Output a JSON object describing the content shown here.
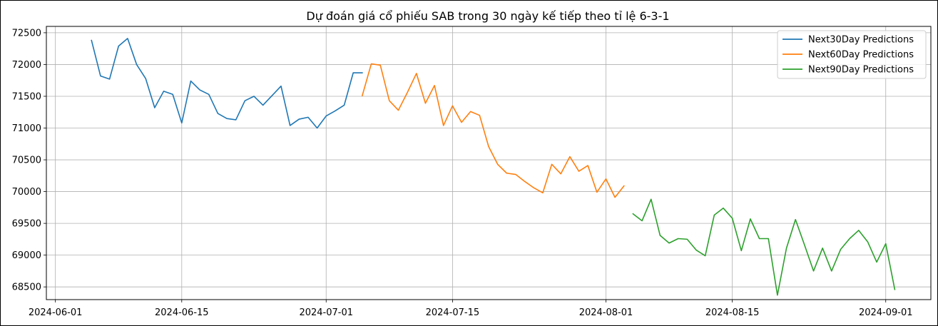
{
  "chart_data": {
    "type": "line",
    "title": "Dự đoán giá cổ phiếu SAB trong 30 ngày kế tiếp theo tỉ lệ 6-3-1",
    "xlabel": "",
    "ylabel": "",
    "grid": true,
    "legend_position": "top-right",
    "x_ticks": [
      "2024-06-01",
      "2024-06-15",
      "2024-07-01",
      "2024-07-15",
      "2024-08-01",
      "2024-08-15",
      "2024-09-01"
    ],
    "y_ticks": [
      68500,
      69000,
      69500,
      70000,
      70500,
      71000,
      71500,
      72000,
      72500
    ],
    "ylim": [
      68300,
      72600
    ],
    "xlim": [
      "2024-05-31",
      "2024-09-06"
    ],
    "series": [
      {
        "name": "Next30Day Predictions",
        "color": "#1f77b4",
        "x": [
          "2024-06-05",
          "2024-06-06",
          "2024-06-07",
          "2024-06-08",
          "2024-06-09",
          "2024-06-10",
          "2024-06-11",
          "2024-06-12",
          "2024-06-13",
          "2024-06-14",
          "2024-06-15",
          "2024-06-16",
          "2024-06-17",
          "2024-06-18",
          "2024-06-19",
          "2024-06-20",
          "2024-06-21",
          "2024-06-22",
          "2024-06-23",
          "2024-06-24",
          "2024-06-25",
          "2024-06-26",
          "2024-06-27",
          "2024-06-28",
          "2024-06-29",
          "2024-06-30",
          "2024-07-01",
          "2024-07-02",
          "2024-07-03",
          "2024-07-04",
          "2024-07-05"
        ],
        "y": [
          72380,
          71820,
          71770,
          72290,
          72410,
          72000,
          71780,
          71320,
          71580,
          71530,
          71080,
          71740,
          71600,
          71530,
          71230,
          71150,
          71130,
          71430,
          71500,
          71360,
          71510,
          71660,
          71040,
          71140,
          71170,
          71000,
          71190,
          71270,
          71360,
          71870,
          71870
        ]
      },
      {
        "name": "Next60Day Predictions",
        "color": "#ff7f0e",
        "x": [
          "2024-07-05",
          "2024-07-06",
          "2024-07-07",
          "2024-07-08",
          "2024-07-09",
          "2024-07-10",
          "2024-07-11",
          "2024-07-12",
          "2024-07-13",
          "2024-07-14",
          "2024-07-15",
          "2024-07-16",
          "2024-07-17",
          "2024-07-18",
          "2024-07-19",
          "2024-07-20",
          "2024-07-21",
          "2024-07-22",
          "2024-07-23",
          "2024-07-24",
          "2024-07-25",
          "2024-07-26",
          "2024-07-27",
          "2024-07-28",
          "2024-07-29",
          "2024-07-30",
          "2024-07-31",
          "2024-08-01",
          "2024-08-02",
          "2024-08-03"
        ],
        "y": [
          71510,
          72010,
          71990,
          71430,
          71280,
          71560,
          71860,
          71390,
          71670,
          71040,
          71350,
          71090,
          71260,
          71200,
          70710,
          70430,
          70290,
          70270,
          70160,
          70060,
          69980,
          70430,
          70280,
          70550,
          70320,
          70410,
          69990,
          70200,
          69910,
          70090
        ]
      },
      {
        "name": "Next90Day Predictions",
        "color": "#2ca02c",
        "x": [
          "2024-08-04",
          "2024-08-05",
          "2024-08-06",
          "2024-08-07",
          "2024-08-08",
          "2024-08-09",
          "2024-08-10",
          "2024-08-11",
          "2024-08-12",
          "2024-08-13",
          "2024-08-14",
          "2024-08-15",
          "2024-08-16",
          "2024-08-17",
          "2024-08-18",
          "2024-08-19",
          "2024-08-20",
          "2024-08-21",
          "2024-08-22",
          "2024-08-23",
          "2024-08-24",
          "2024-08-25",
          "2024-08-26",
          "2024-08-27",
          "2024-08-28",
          "2024-08-29",
          "2024-08-30",
          "2024-08-31",
          "2024-09-01",
          "2024-09-02"
        ],
        "y": [
          69650,
          69540,
          69880,
          69310,
          69190,
          69260,
          69250,
          69080,
          68990,
          69630,
          69740,
          69580,
          69070,
          69570,
          69260,
          69260,
          68370,
          69110,
          69560,
          69160,
          68750,
          69110,
          68750,
          69090,
          69260,
          69390,
          69210,
          68890,
          69180,
          68460
        ]
      }
    ]
  }
}
